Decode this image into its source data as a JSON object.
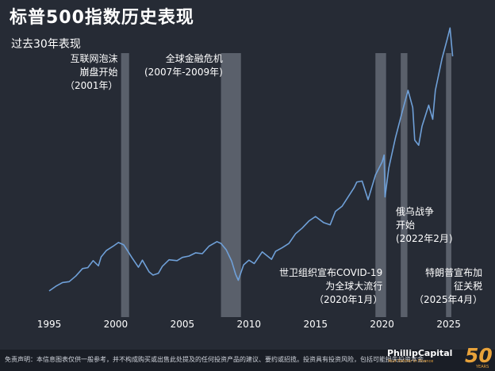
{
  "title": "标普500指数历史表现",
  "subtitle": "过去30年表现",
  "chart_data": {
    "type": "line",
    "title": "标普500指数历史表现",
    "subtitle": "过去30年表现",
    "xlabel": "",
    "ylabel": "",
    "xlim": [
      1995,
      2025.5
    ],
    "ylim": [
      0,
      6200
    ],
    "y_axis_shown": false,
    "x_ticks": [
      "1995",
      "2000",
      "2005",
      "2010",
      "2015",
      "2020",
      "2025"
    ],
    "line_color": "#6fa0d8",
    "shade_color": "#5a606b",
    "series": [
      {
        "values": [
          [
            1995.0,
            460
          ],
          [
            1995.5,
            560
          ],
          [
            1996.0,
            640
          ],
          [
            1996.5,
            660
          ],
          [
            1997.0,
            780
          ],
          [
            1997.5,
            940
          ],
          [
            1997.9,
            960
          ],
          [
            1998.3,
            1110
          ],
          [
            1998.7,
            1000
          ],
          [
            1998.9,
            1190
          ],
          [
            1999.3,
            1330
          ],
          [
            1999.8,
            1420
          ],
          [
            2000.2,
            1500
          ],
          [
            2000.6,
            1450
          ],
          [
            2000.9,
            1320
          ],
          [
            2001.2,
            1180
          ],
          [
            2001.7,
            970
          ],
          [
            2002.0,
            1120
          ],
          [
            2002.5,
            870
          ],
          [
            2002.8,
            800
          ],
          [
            2003.2,
            840
          ],
          [
            2003.5,
            990
          ],
          [
            2004.0,
            1130
          ],
          [
            2004.6,
            1110
          ],
          [
            2005.0,
            1180
          ],
          [
            2005.5,
            1210
          ],
          [
            2006.0,
            1280
          ],
          [
            2006.5,
            1260
          ],
          [
            2007.0,
            1420
          ],
          [
            2007.6,
            1520
          ],
          [
            2007.9,
            1480
          ],
          [
            2008.3,
            1340
          ],
          [
            2008.7,
            1100
          ],
          [
            2009.0,
            820
          ],
          [
            2009.2,
            690
          ],
          [
            2009.6,
            1020
          ],
          [
            2010.0,
            1120
          ],
          [
            2010.4,
            1050
          ],
          [
            2011.0,
            1300
          ],
          [
            2011.7,
            1140
          ],
          [
            2012.0,
            1310
          ],
          [
            2012.5,
            1390
          ],
          [
            2013.0,
            1480
          ],
          [
            2013.5,
            1690
          ],
          [
            2014.0,
            1810
          ],
          [
            2014.5,
            1960
          ],
          [
            2015.0,
            2060
          ],
          [
            2015.6,
            1930
          ],
          [
            2016.1,
            1880
          ],
          [
            2016.5,
            2170
          ],
          [
            2017.0,
            2280
          ],
          [
            2017.9,
            2680
          ],
          [
            2018.1,
            2800
          ],
          [
            2018.5,
            2820
          ],
          [
            2018.95,
            2420
          ],
          [
            2019.5,
            2950
          ],
          [
            2020.0,
            3230
          ],
          [
            2020.15,
            3380
          ],
          [
            2020.22,
            2480
          ],
          [
            2020.5,
            3100
          ],
          [
            2021.0,
            3750
          ],
          [
            2021.5,
            4300
          ],
          [
            2021.95,
            4770
          ],
          [
            2022.3,
            4400
          ],
          [
            2022.45,
            3700
          ],
          [
            2022.75,
            3590
          ],
          [
            2023.0,
            4000
          ],
          [
            2023.5,
            4450
          ],
          [
            2023.8,
            4150
          ],
          [
            2024.0,
            4770
          ],
          [
            2024.5,
            5450
          ],
          [
            2024.9,
            5880
          ],
          [
            2025.1,
            6110
          ],
          [
            2025.3,
            5500
          ]
        ]
      }
    ],
    "shaded_periods": [
      {
        "start": 2000.4,
        "end": 2001.0,
        "label": [
          "互联网泡沫",
          "崩盘开始",
          "（2001年）"
        ]
      },
      {
        "start": 2007.9,
        "end": 2009.4,
        "label": [
          "全球金融危机",
          "(2007年-2009年)"
        ]
      },
      {
        "start": 2019.5,
        "end": 2020.3,
        "label": [
          "世卫组织宣布COVID-19",
          "为全球大流行",
          "（2020年1月）"
        ]
      },
      {
        "start": 2021.4,
        "end": 2021.9,
        "label": [
          "俄乌战争",
          "开始",
          "(2022年2月)"
        ]
      },
      {
        "start": 2024.8,
        "end": 2025.2,
        "label": [
          "特朗普宣布加",
          "征关税",
          "（2025年4月）"
        ]
      }
    ]
  },
  "footer": {
    "disclaimer": "免责声明：本信息图表仅供一般参考，并不构成购买或出售此处提及的任何投资产品的建议、要约或招揽。投资具有投资风险，包括可能损失投资本金。",
    "brand": "PhillipCapital",
    "tagline": "Your Partner in Finance",
    "badge": "50",
    "badge_sub": "YEARS"
  }
}
